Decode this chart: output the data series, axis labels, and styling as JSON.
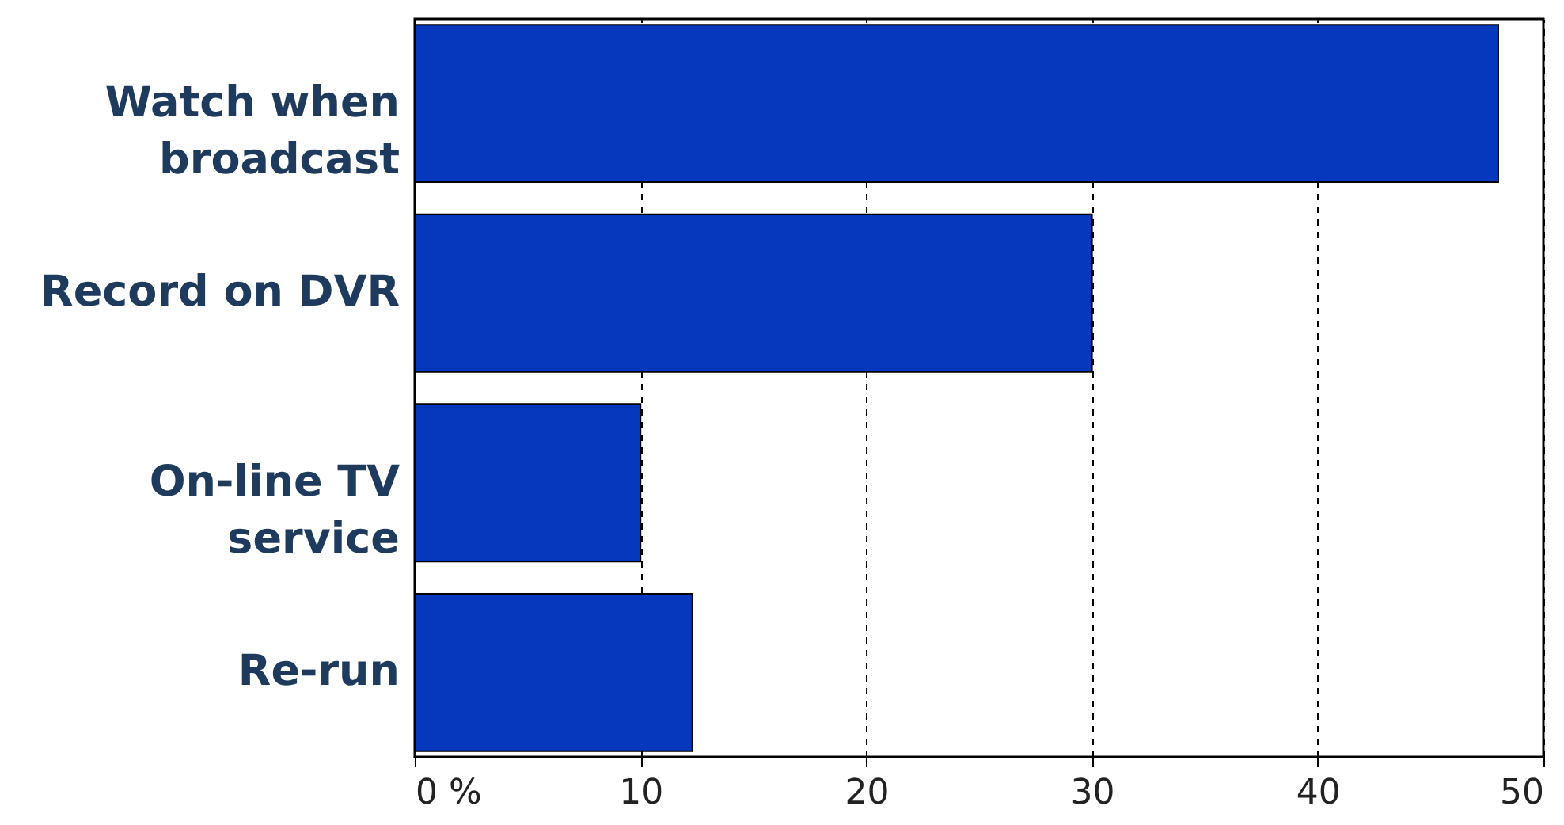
{
  "chart_data": {
    "type": "bar",
    "orientation": "horizontal",
    "categories": [
      "Watch when broadcast",
      "Record on DVR",
      "On-line TV service",
      "Re-run"
    ],
    "values": [
      48,
      30,
      10,
      12.3
    ],
    "color": "#0538bd",
    "xlim": [
      0,
      50
    ],
    "xticks": [
      {
        "value": 0,
        "label": "0 %"
      },
      10,
      20,
      30,
      40,
      50
    ],
    "grid": "x"
  }
}
